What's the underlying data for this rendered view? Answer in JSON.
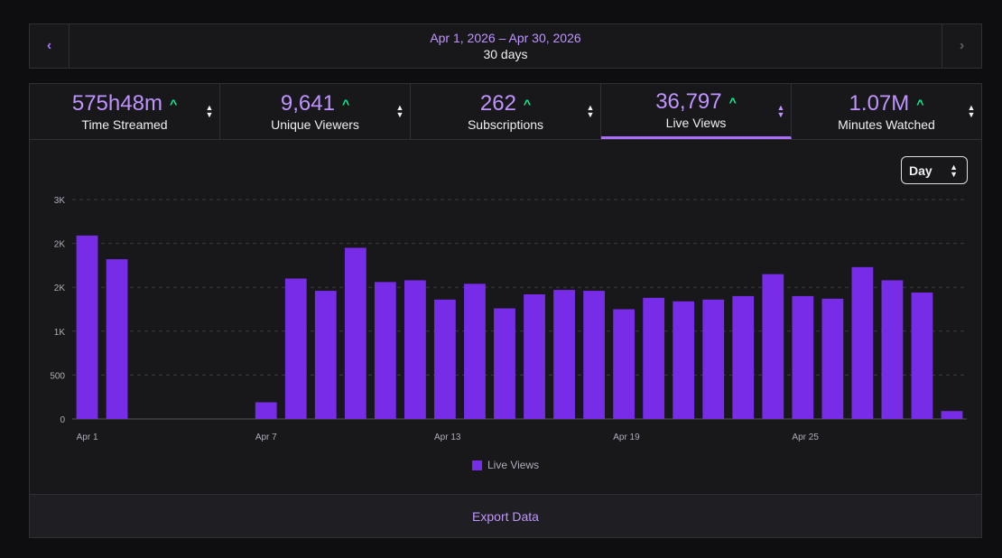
{
  "date_bar": {
    "prev_icon": "chevron-left-icon",
    "next_icon": "chevron-right-icon",
    "range": "Apr 1, 2026 – Apr 30, 2026",
    "days": "30 days"
  },
  "tabs": [
    {
      "value": "575h48m",
      "label": "Time Streamed",
      "trend": "up"
    },
    {
      "value": "9,641",
      "label": "Unique Viewers",
      "trend": "up"
    },
    {
      "value": "262",
      "label": "Subscriptions",
      "trend": "up"
    },
    {
      "value": "36,797",
      "label": "Live Views",
      "trend": "up",
      "active": true
    },
    {
      "value": "1.07M",
      "label": "Minutes Watched",
      "trend": "up"
    }
  ],
  "interval_select": {
    "value": "Day"
  },
  "chart_data": {
    "type": "bar",
    "categories": [
      "Apr 1",
      "Apr 2",
      "Apr 3",
      "Apr 4",
      "Apr 5",
      "Apr 6",
      "Apr 7",
      "Apr 8",
      "Apr 9",
      "Apr 10",
      "Apr 11",
      "Apr 12",
      "Apr 13",
      "Apr 14",
      "Apr 15",
      "Apr 16",
      "Apr 17",
      "Apr 18",
      "Apr 19",
      "Apr 20",
      "Apr 21",
      "Apr 22",
      "Apr 23",
      "Apr 24",
      "Apr 25",
      "Apr 26",
      "Apr 27",
      "Apr 28",
      "Apr 29",
      "Apr 30"
    ],
    "x_tick_labels": [
      "Apr 1",
      "Apr 7",
      "Apr 13",
      "Apr 19",
      "Apr 25"
    ],
    "y_ticks": [
      0,
      500,
      1000,
      1500,
      2000,
      2500
    ],
    "y_tick_labels": [
      "0",
      "500",
      "1K",
      "2K",
      "2K",
      "3K"
    ],
    "ylim": [
      0,
      2500
    ],
    "grid": true,
    "series": [
      {
        "name": "Live Views",
        "color": "#772ce8",
        "values": [
          2090,
          1820,
          0,
          0,
          0,
          0,
          190,
          1600,
          1460,
          1950,
          1560,
          1580,
          1360,
          1540,
          1260,
          1420,
          1470,
          1460,
          1250,
          1380,
          1340,
          1360,
          1400,
          1650,
          1400,
          1370,
          1730,
          1580,
          1440,
          90
        ]
      }
    ],
    "legend": "bottom-center"
  },
  "export": {
    "label": "Export Data"
  },
  "colors": {
    "accent": "#a970ff",
    "value": "#bf94ff",
    "trend_up": "#00f593",
    "bar": "#772ce8",
    "panel": "#18181b",
    "background": "#0e0e10"
  }
}
